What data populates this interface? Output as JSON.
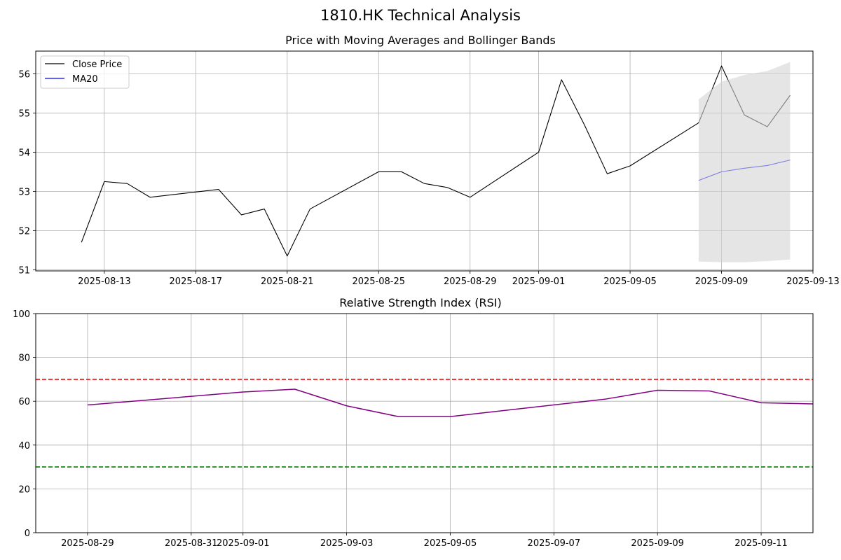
{
  "figure": {
    "title": "1810.HK Technical Analysis"
  },
  "chart_data": [
    {
      "type": "line",
      "title": "Price with Moving Averages and Bollinger Bands",
      "xlabel": "",
      "ylabel": "",
      "x_axis": "date",
      "xlim": [
        "2025-08-10",
        "2025-09-13"
      ],
      "ylim": [
        50.97,
        56.58
      ],
      "x_ticks": [
        "2025-08-13",
        "2025-08-17",
        "2025-08-21",
        "2025-08-25",
        "2025-08-29",
        "2025-09-01",
        "2025-09-05",
        "2025-09-09",
        "2025-09-13"
      ],
      "y_ticks": [
        51,
        52,
        53,
        54,
        55,
        56
      ],
      "grid": true,
      "legend_position": "top-left",
      "series": [
        {
          "name": "Close Price",
          "color": "#000000",
          "x": [
            "2025-08-12",
            "2025-08-13",
            "2025-08-14",
            "2025-08-15",
            "2025-08-18",
            "2025-08-19",
            "2025-08-20",
            "2025-08-21",
            "2025-08-22",
            "2025-08-25",
            "2025-08-26",
            "2025-08-27",
            "2025-08-28",
            "2025-08-29",
            "2025-09-01",
            "2025-09-02",
            "2025-09-03",
            "2025-09-04",
            "2025-09-05",
            "2025-09-08",
            "2025-09-09",
            "2025-09-10",
            "2025-09-11",
            "2025-09-12"
          ],
          "values": [
            51.7,
            53.25,
            53.2,
            52.85,
            53.05,
            52.4,
            52.55,
            51.35,
            52.55,
            53.5,
            53.5,
            53.2,
            53.1,
            52.85,
            54.0,
            55.85,
            54.7,
            53.45,
            53.65,
            54.75,
            56.2,
            54.95,
            54.65,
            55.45
          ]
        },
        {
          "name": "MA20",
          "color": "#0000ff",
          "x": [
            "2025-09-08",
            "2025-09-09",
            "2025-09-10",
            "2025-09-11",
            "2025-09-12"
          ],
          "values": [
            53.28,
            53.5,
            53.59,
            53.66,
            53.8
          ]
        },
        {
          "type": "band",
          "color": "#d3d3d3",
          "x": [
            "2025-09-08",
            "2025-09-09",
            "2025-09-10",
            "2025-09-11",
            "2025-09-12"
          ],
          "upper": [
            55.35,
            55.8,
            55.97,
            56.07,
            56.3
          ],
          "lower": [
            51.21,
            51.19,
            51.19,
            51.22,
            51.26
          ]
        }
      ]
    },
    {
      "type": "line",
      "title": "Relative Strength Index (RSI)",
      "xlabel": "",
      "ylabel": "",
      "x_axis": "date",
      "xlim": [
        "2025-08-28",
        "2025-09-12"
      ],
      "ylim": [
        0,
        100
      ],
      "x_ticks": [
        "2025-08-29",
        "2025-08-31",
        "2025-09-01",
        "2025-09-03",
        "2025-09-05",
        "2025-09-07",
        "2025-09-09",
        "2025-09-11"
      ],
      "y_ticks": [
        0,
        20,
        40,
        60,
        80,
        100
      ],
      "grid": true,
      "series": [
        {
          "color": "#800080",
          "x": [
            "2025-08-29",
            "2025-09-01",
            "2025-09-02",
            "2025-09-03",
            "2025-09-04",
            "2025-09-05",
            "2025-09-08",
            "2025-09-09",
            "2025-09-10",
            "2025-09-11",
            "2025-09-12"
          ],
          "values": [
            58.3,
            64.2,
            65.5,
            57.9,
            53.0,
            53.0,
            61.0,
            65.0,
            64.7,
            59.3,
            58.8
          ]
        }
      ],
      "reference_lines": [
        {
          "value": 70,
          "color": "#ff0000",
          "style": "dashed"
        },
        {
          "value": 30,
          "color": "#008000",
          "style": "dashed"
        }
      ]
    }
  ]
}
